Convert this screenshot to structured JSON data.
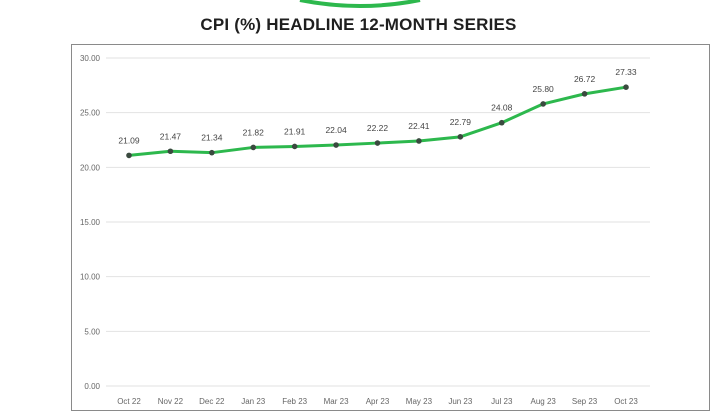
{
  "chart_data": {
    "type": "line",
    "title": "CPI (%)  HEADLINE 12-MONTH SERIES",
    "categories": [
      "Oct 22",
      "Nov 22",
      "Dec 22",
      "Jan 23",
      "Feb 23",
      "Mar 23",
      "Apr 23",
      "May 23",
      "Jun 23",
      "Jul 23",
      "Aug 23",
      "Sep 23",
      "Oct 23"
    ],
    "values": [
      21.09,
      21.47,
      21.34,
      21.82,
      21.91,
      22.04,
      22.22,
      22.41,
      22.79,
      24.08,
      25.8,
      26.72,
      27.33
    ],
    "yticks": [
      "0.00",
      "5.00",
      "10.00",
      "15.00",
      "20.00",
      "25.00",
      "30.00"
    ],
    "ylim": [
      0,
      30
    ],
    "grid": true,
    "line_color": "#2db84d",
    "marker_color": "#3a4a3f"
  }
}
